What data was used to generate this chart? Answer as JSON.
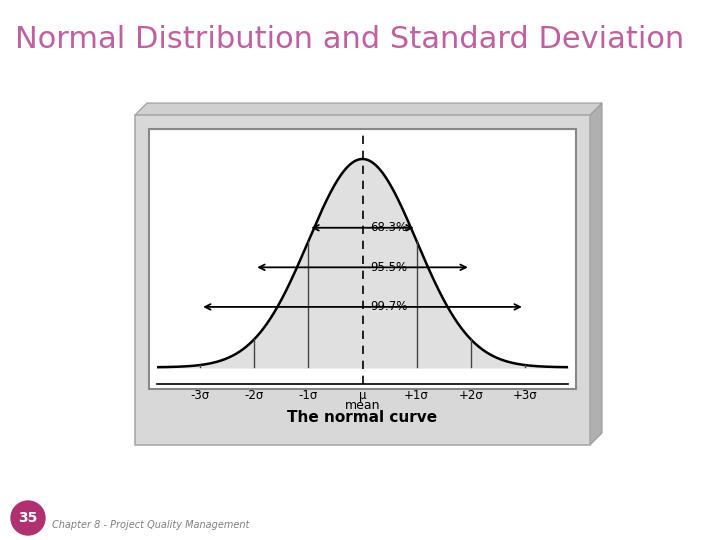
{
  "title": "Normal Distribution and Standard Deviation",
  "title_color": "#c060a0",
  "title_fontsize": 22,
  "subtitle": "The normal curve",
  "subtitle_fontsize": 11,
  "slide_bg": "#ffffff",
  "curve_color": "#000000",
  "fill_color": "#e0e0e0",
  "inner_bg": "#ffffff",
  "outer_bg": "#d8d8d8",
  "box_3d_color": "#c8c8c8",
  "box_3d_light": "#e8e8e8",
  "annotations": [
    {
      "text": "68.3%",
      "sigma": 1
    },
    {
      "text": "95.5%",
      "sigma": 2
    },
    {
      "text": "99.7%",
      "sigma": 3
    }
  ],
  "x_ticks": [
    -3,
    -2,
    -1,
    0,
    1,
    2,
    3
  ],
  "x_tick_labels": [
    "-3σ",
    "-2σ",
    "-1σ",
    "μ",
    "+1σ",
    "+2σ",
    "+3σ"
  ],
  "footer_text": "35",
  "footer_chapter": "Chapter 8 - Project Quality Management",
  "footer_circle_color": "#b03070",
  "footer_text_color": "#ffffff",
  "chapter_text_color": "#808080",
  "vline_color": "#555555",
  "arrow_color": "#000000"
}
